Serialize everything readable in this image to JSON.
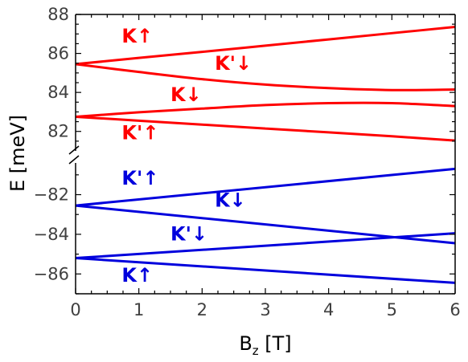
{
  "chart_data": {
    "type": "line",
    "xlabel": "B",
    "xlabel_subscript": "z",
    "xlabel_unit": " [T]",
    "ylabel": "E [meV]",
    "xlim": [
      0,
      6
    ],
    "x_ticks": [
      0,
      1,
      2,
      3,
      4,
      5,
      6
    ],
    "x_tick_labels": [
      "0",
      "1",
      "2",
      "3",
      "4",
      "5",
      "6"
    ],
    "y_break": true,
    "upper_panel": {
      "ylim": [
        81.0,
        88.0
      ],
      "y_ticks": [
        82,
        84,
        86,
        88
      ],
      "y_tick_labels": [
        "82",
        "84",
        "86",
        "88"
      ]
    },
    "lower_panel": {
      "ylim": [
        -87.0,
        -80.4
      ],
      "y_ticks": [
        -86,
        -84,
        -82
      ],
      "y_tick_labels": [
        "−86",
        "−84",
        "−82"
      ]
    },
    "grid": false,
    "colors": {
      "red_series": "#ff0000",
      "blue_series": "#0000dd"
    },
    "series": [
      {
        "panel": "upper",
        "color": "red",
        "x": [
          0,
          1,
          2,
          3,
          4,
          5,
          6
        ],
        "y": [
          85.45,
          85.77,
          86.08,
          86.4,
          86.72,
          87.04,
          87.36
        ]
      },
      {
        "panel": "upper",
        "color": "red",
        "x": [
          0,
          1,
          2,
          3,
          4,
          5,
          6
        ],
        "y": [
          85.45,
          85.05,
          84.68,
          84.4,
          84.22,
          84.12,
          84.15
        ]
      },
      {
        "panel": "upper",
        "color": "red",
        "x": [
          0,
          1,
          2,
          3,
          4,
          5,
          6
        ],
        "y": [
          82.75,
          82.98,
          83.17,
          83.35,
          83.45,
          83.45,
          83.3
        ]
      },
      {
        "panel": "upper",
        "color": "red",
        "x": [
          0,
          1,
          2,
          3,
          4,
          5,
          6
        ],
        "y": [
          82.75,
          82.55,
          82.35,
          82.15,
          81.95,
          81.75,
          81.53
        ]
      },
      {
        "panel": "lower",
        "color": "blue",
        "x": [
          0,
          6
        ],
        "y": [
          -82.55,
          -80.7
        ]
      },
      {
        "panel": "lower",
        "color": "blue",
        "x": [
          0,
          6
        ],
        "y": [
          -82.55,
          -84.45
        ]
      },
      {
        "panel": "lower",
        "color": "blue",
        "x": [
          0,
          6
        ],
        "y": [
          -85.2,
          -83.95
        ]
      },
      {
        "panel": "lower",
        "color": "blue",
        "x": [
          0,
          6
        ],
        "y": [
          -85.2,
          -86.45
        ]
      }
    ],
    "annotations": [
      {
        "text": "K↑",
        "color": "red",
        "x": 0.73,
        "y": 86.55,
        "panel": "upper"
      },
      {
        "text": "K'↓",
        "color": "red",
        "x": 2.2,
        "y": 85.15,
        "panel": "upper"
      },
      {
        "text": "K↓",
        "color": "red",
        "x": 1.5,
        "y": 83.55,
        "panel": "upper"
      },
      {
        "text": "K'↑",
        "color": "red",
        "x": 0.73,
        "y": 81.6,
        "panel": "upper"
      },
      {
        "text": "K'↑",
        "color": "blue",
        "x": 0.73,
        "y": -81.5,
        "panel": "lower"
      },
      {
        "text": "K↓",
        "color": "blue",
        "x": 2.2,
        "y": -82.6,
        "panel": "lower"
      },
      {
        "text": "K'↓",
        "color": "blue",
        "x": 1.5,
        "y": -84.3,
        "panel": "lower"
      },
      {
        "text": "K↑",
        "color": "blue",
        "x": 0.73,
        "y": -86.4,
        "panel": "lower"
      }
    ]
  }
}
